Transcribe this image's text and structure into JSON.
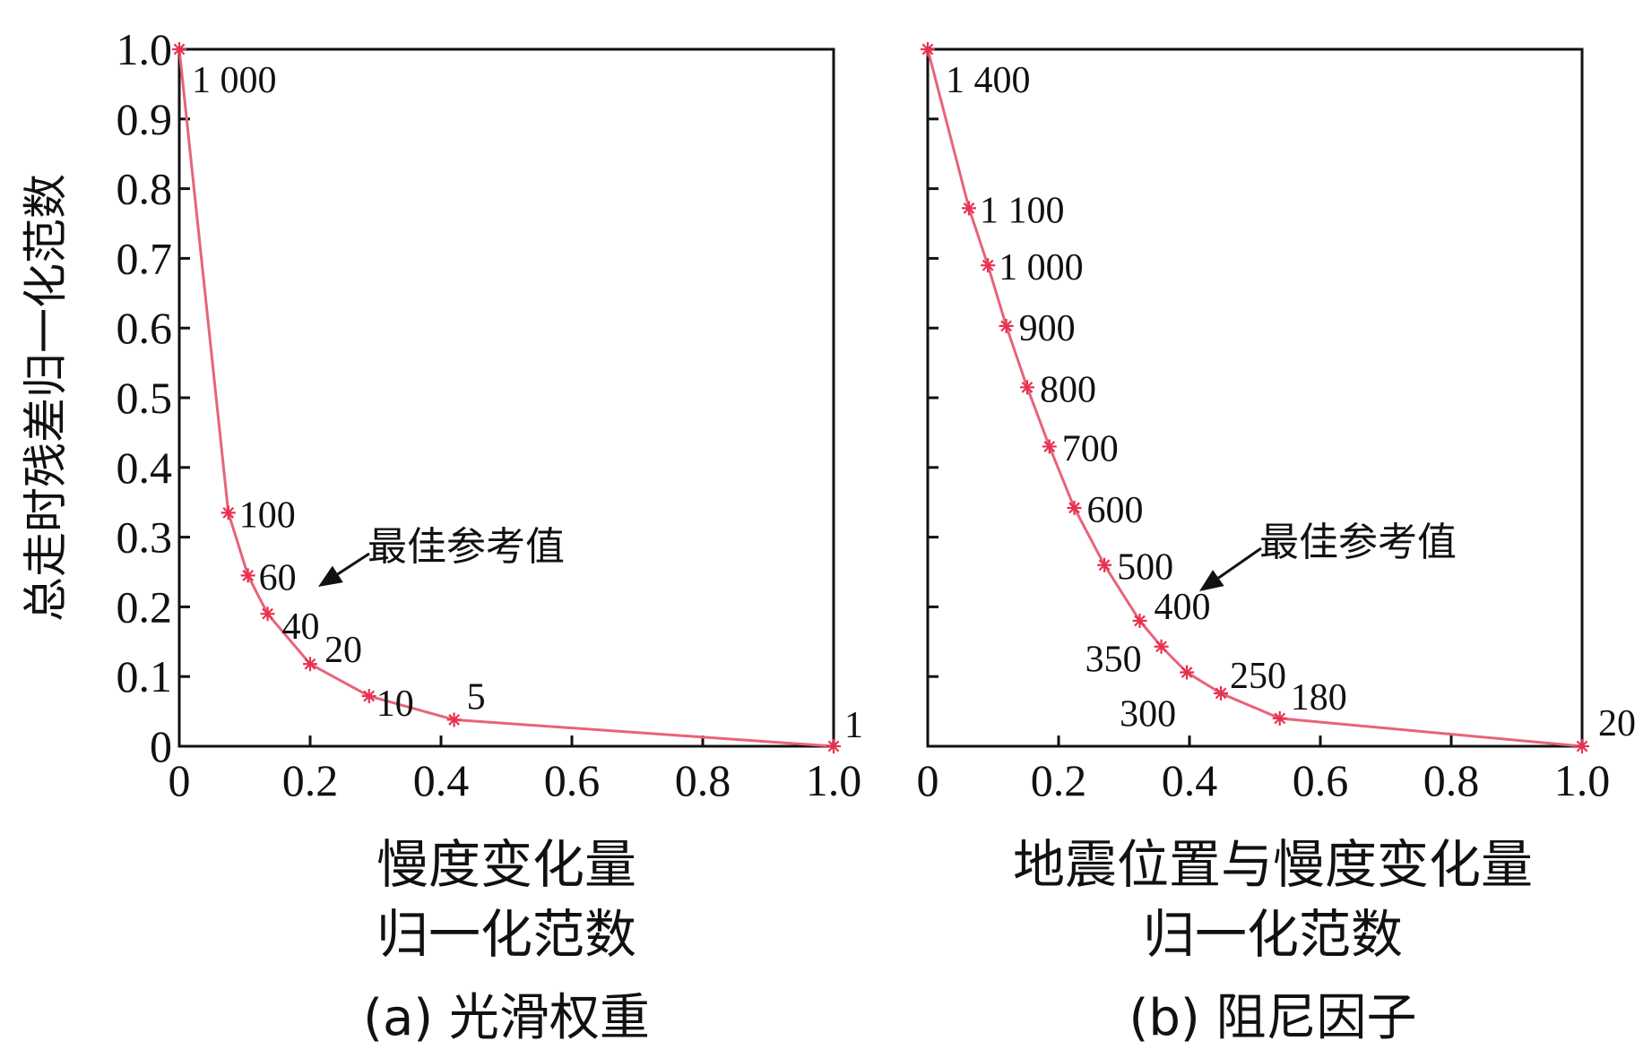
{
  "chart_data": [
    {
      "type": "line",
      "ylabel": "总走时残差归一化范数",
      "xlabel_lines": [
        "慢度变化量",
        "归一化范数"
      ],
      "caption": "(a) 光滑权重",
      "annotation": "最佳参考值",
      "annotation_target": "40",
      "xlim": [
        0,
        1.0
      ],
      "ylim": [
        0,
        1.0
      ],
      "x_ticks": [
        "0",
        "0.2",
        "0.4",
        "0.6",
        "0.8",
        "1.0"
      ],
      "y_ticks": [
        "0",
        "0.1",
        "0.2",
        "0.3",
        "0.4",
        "0.5",
        "0.6",
        "0.7",
        "0.8",
        "0.9",
        "1.0"
      ],
      "grid": false,
      "line_color": "#e8637a",
      "points": [
        {
          "x": 0.0,
          "y": 1.0,
          "label": "1 000"
        },
        {
          "x": 0.075,
          "y": 0.335,
          "label": "100"
        },
        {
          "x": 0.105,
          "y": 0.245,
          "label": "60"
        },
        {
          "x": 0.135,
          "y": 0.19,
          "label": "40"
        },
        {
          "x": 0.2,
          "y": 0.118,
          "label": "20"
        },
        {
          "x": 0.29,
          "y": 0.072,
          "label": "10"
        },
        {
          "x": 0.42,
          "y": 0.038,
          "label": "5"
        },
        {
          "x": 1.0,
          "y": 0.0,
          "label": "1"
        }
      ]
    },
    {
      "type": "line",
      "xlabel_lines": [
        "地震位置与慢度变化量",
        "归一化范数"
      ],
      "caption": "(b) 阻尼因子",
      "annotation": "最佳参考值",
      "annotation_target": "400",
      "xlim": [
        0,
        1.0
      ],
      "ylim": [
        0,
        1.0
      ],
      "x_ticks": [
        "0",
        "0.2",
        "0.4",
        "0.6",
        "0.8",
        "1.0"
      ],
      "grid": false,
      "line_color": "#e8637a",
      "points": [
        {
          "x": 0.0,
          "y": 1.0,
          "label": "1 400"
        },
        {
          "x": 0.063,
          "y": 0.772,
          "label": "1 100"
        },
        {
          "x": 0.092,
          "y": 0.69,
          "label": "1 000"
        },
        {
          "x": 0.12,
          "y": 0.603,
          "label": "900"
        },
        {
          "x": 0.152,
          "y": 0.515,
          "label": "800"
        },
        {
          "x": 0.186,
          "y": 0.43,
          "label": "700"
        },
        {
          "x": 0.224,
          "y": 0.342,
          "label": "600"
        },
        {
          "x": 0.27,
          "y": 0.26,
          "label": "500"
        },
        {
          "x": 0.324,
          "y": 0.18,
          "label": "400"
        },
        {
          "x": 0.357,
          "y": 0.143,
          "label": "350"
        },
        {
          "x": 0.396,
          "y": 0.106,
          "label": "300"
        },
        {
          "x": 0.448,
          "y": 0.076,
          "label": "250"
        },
        {
          "x": 0.538,
          "y": 0.04,
          "label": "180"
        },
        {
          "x": 1.0,
          "y": 0.0,
          "label": "20"
        }
      ]
    }
  ]
}
